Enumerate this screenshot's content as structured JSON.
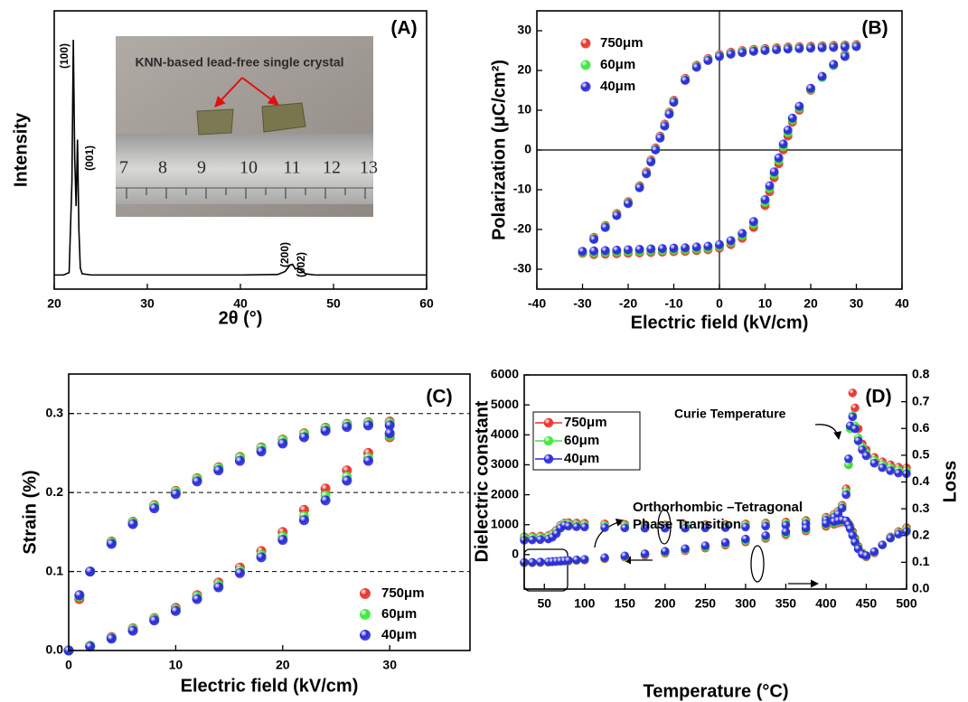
{
  "chart_data": [
    {
      "type": "line",
      "panel_label": "(A)",
      "xlabel": "2θ (°)",
      "ylabel": "Intensity",
      "xlim": [
        20,
        60
      ],
      "xticks": [
        20,
        30,
        40,
        50,
        60
      ],
      "x": [
        20,
        21,
        21.6,
        21.9,
        22.05,
        22.2,
        22.35,
        22.5,
        22.65,
        22.8,
        23,
        24,
        30,
        40,
        44,
        44.8,
        45.3,
        45.6,
        45.9,
        46.2,
        46.5,
        47,
        48,
        60
      ],
      "series": [
        {
          "color": "#000000",
          "values": [
            1,
            1,
            2,
            40,
            100,
            50,
            30,
            58,
            20,
            4,
            1.5,
            1,
            1,
            1,
            1.2,
            2.5,
            5,
            5.5,
            3.5,
            4,
            3,
            1.5,
            1,
            1
          ]
        }
      ],
      "annotations": [
        "(100)",
        "(001)",
        "(200)",
        "(002)"
      ],
      "inset_text": "KNN-based  lead-free single crystal",
      "ruler_labels": [
        7,
        8,
        9,
        10,
        11,
        12,
        13
      ]
    },
    {
      "type": "scatter",
      "panel_label": "(B)",
      "xlabel": "Electric field (kV/cm)",
      "ylabel": "Polarization (μC/cm²)",
      "xlim": [
        -40,
        40
      ],
      "xticks": [
        -40,
        -30,
        -20,
        -10,
        0,
        10,
        20,
        30,
        40
      ],
      "ylim": [
        -35,
        35
      ],
      "yticks": [
        -30,
        -20,
        -10,
        0,
        10,
        20,
        30
      ],
      "crosshair": true,
      "legend": "upper left",
      "x": [
        30,
        27.5,
        25,
        22.5,
        20,
        17.5,
        15,
        12.5,
        10,
        7.5,
        5,
        2.5,
        0,
        -2.5,
        -5,
        -7.5,
        -10,
        -11,
        -12,
        -13,
        -14,
        -15,
        -16,
        -17.5,
        -20,
        -22.5,
        -25,
        -27.5,
        -30,
        -27.5,
        -25,
        -22.5,
        -20,
        -17.5,
        -15,
        -12.5,
        -10,
        -7.5,
        -5,
        -2.5,
        0,
        2.5,
        5,
        7.5,
        10,
        11,
        12,
        13,
        14,
        15,
        16,
        17.5,
        20,
        22.5,
        25,
        27.5
      ],
      "series": [
        {
          "name": "750μm",
          "color": "#e8312a",
          "values": [
            26.5,
            26.4,
            26.3,
            26.2,
            26.1,
            26,
            25.9,
            25.7,
            25.5,
            25.3,
            25,
            24.6,
            24,
            23,
            21.3,
            18,
            12.5,
            9.5,
            6.5,
            3.5,
            0.5,
            -2.5,
            -5.5,
            -9,
            -13,
            -16,
            -19,
            -22,
            -26,
            -26.3,
            -26.2,
            -26.1,
            -26,
            -25.9,
            -25.8,
            -25.7,
            -25.6,
            -25.5,
            -25.3,
            -25.1,
            -24.7,
            -23.8,
            -22.2,
            -19.5,
            -14,
            -10.5,
            -7,
            -3.5,
            0,
            3.5,
            7,
            10,
            15,
            18.5,
            21.5,
            24
          ]
        },
        {
          "name": "60μm",
          "color": "#3be83b",
          "values": [
            26.2,
            26.1,
            26,
            25.9,
            25.8,
            25.7,
            25.6,
            25.4,
            25.2,
            25,
            24.7,
            24.3,
            23.7,
            22.7,
            21,
            17.7,
            12.2,
            9.2,
            6.2,
            3.2,
            0.2,
            -2.8,
            -5.8,
            -9.3,
            -13.3,
            -16.3,
            -19.3,
            -22.3,
            -25.8,
            -25.9,
            -25.8,
            -25.7,
            -25.6,
            -25.5,
            -25.4,
            -25.3,
            -25.2,
            -25.1,
            -24.9,
            -24.7,
            -24.3,
            -23.3,
            -21.6,
            -18.7,
            -13.2,
            -9.7,
            -6.2,
            -2.7,
            0.8,
            4.3,
            7.5,
            10.5,
            15.2,
            18.2,
            21.2,
            23.7
          ]
        },
        {
          "name": "40μm",
          "color": "#2a2ad8",
          "values": [
            26,
            25.9,
            25.8,
            25.7,
            25.6,
            25.5,
            25.4,
            25.2,
            25.0,
            24.8,
            24.5,
            24.1,
            23.5,
            22.5,
            20.8,
            17.5,
            12,
            9,
            6,
            3,
            0,
            -3,
            -6,
            -9.5,
            -13.5,
            -16.5,
            -19.5,
            -22.5,
            -25.5,
            -25.4,
            -25.3,
            -25.2,
            -25.1,
            -25,
            -24.9,
            -24.8,
            -24.7,
            -24.6,
            -24.4,
            -24.2,
            -23.8,
            -22.8,
            -21,
            -18,
            -12.5,
            -9,
            -5.5,
            -2,
            1.5,
            5,
            8,
            11,
            15.5,
            18.5,
            21.5,
            23.5
          ]
        }
      ]
    },
    {
      "type": "scatter",
      "panel_label": "(C)",
      "xlabel": "Electric field (kV/cm)",
      "ylabel": "Strain (%)",
      "xlim": [
        0,
        37.5
      ],
      "xticks": [
        0,
        10,
        20,
        30
      ],
      "ylim": [
        0,
        0.35
      ],
      "yticks": [
        {
          "value": 0,
          "label": "0.0"
        },
        0.1,
        0.2,
        0.3
      ],
      "grid": true,
      "legend": "lower right",
      "x": [
        30,
        28,
        26,
        24,
        22,
        20,
        18,
        16,
        14,
        12,
        10,
        8,
        6,
        4,
        2,
        1,
        0,
        2,
        4,
        6,
        8,
        10,
        12,
        14,
        16,
        18,
        20,
        22,
        24,
        26,
        28,
        30
      ],
      "series": [
        {
          "name": "750μm",
          "color": "#e8312a",
          "values": [
            0.29,
            0.289,
            0.287,
            0.282,
            0.275,
            0.267,
            0.257,
            0.245,
            0.232,
            0.218,
            0.202,
            0.184,
            0.163,
            0.138,
            0.1,
            0.065,
            0,
            0.006,
            0.017,
            0.028,
            0.041,
            0.054,
            0.07,
            0.086,
            0.105,
            0.126,
            0.15,
            0.178,
            0.205,
            0.228,
            0.25,
            0.27
          ]
        },
        {
          "name": "60μm",
          "color": "#3be83b",
          "values": [
            0.288,
            0.288,
            0.286,
            0.281,
            0.274,
            0.266,
            0.256,
            0.244,
            0.231,
            0.217,
            0.201,
            0.183,
            0.162,
            0.137,
            0.1,
            0.068,
            0,
            0.006,
            0.016,
            0.027,
            0.04,
            0.052,
            0.068,
            0.083,
            0.101,
            0.121,
            0.144,
            0.17,
            0.196,
            0.22,
            0.244,
            0.272
          ]
        },
        {
          "name": "40μm",
          "color": "#2a2ad8",
          "values": [
            0.285,
            0.285,
            0.283,
            0.278,
            0.27,
            0.262,
            0.252,
            0.24,
            0.228,
            0.214,
            0.198,
            0.18,
            0.16,
            0.135,
            0.1,
            0.07,
            0,
            0.005,
            0.015,
            0.025,
            0.038,
            0.05,
            0.065,
            0.08,
            0.098,
            0.118,
            0.14,
            0.165,
            0.19,
            0.215,
            0.24,
            0.275
          ]
        }
      ]
    },
    {
      "type": "scatter",
      "panel_label": "(D)",
      "xlabel": "Temperature (°C)",
      "ylabel": "Dielectric constant",
      "y2label": "Loss",
      "xlim": [
        25,
        500
      ],
      "xticks": [
        50,
        100,
        150,
        200,
        250,
        300,
        350,
        400,
        450,
        500
      ],
      "ylim": [
        -1150,
        6000
      ],
      "yticks": [
        0,
        1000,
        2000,
        3000,
        4000,
        5000,
        6000
      ],
      "y2lim": [
        0,
        0.8
      ],
      "y2ticks": [
        {
          "value": 0,
          "label": "0.0"
        },
        0.1,
        0.2,
        0.3,
        0.4,
        0.5,
        0.6,
        0.7,
        0.8
      ],
      "legend": "upper left",
      "legend_frame": true,
      "annotations": [
        "Curie Temperature",
        "Orthorhombic –Tetragonal",
        "Phase Transition"
      ],
      "x": [
        25,
        35,
        45,
        55,
        60,
        65,
        70,
        75,
        80,
        90,
        100,
        125,
        150,
        175,
        200,
        225,
        250,
        275,
        300,
        325,
        350,
        375,
        400,
        410,
        415,
        420,
        425,
        428,
        430,
        433,
        436,
        440,
        445,
        450,
        460,
        470,
        480,
        490,
        500
      ],
      "series": [
        {
          "name": "750μm",
          "color": "#e8312a",
          "values": [
            600,
            610,
            620,
            640,
            700,
            820,
            980,
            1060,
            1070,
            1060,
            1050,
            1030,
            1010,
            1000,
            990,
            990,
            1000,
            1010,
            1030,
            1060,
            1090,
            1140,
            1250,
            1350,
            1450,
            1650,
            2200,
            3000,
            4300,
            5400,
            4900,
            4200,
            3700,
            3500,
            3250,
            3100,
            3000,
            2920,
            2900
          ]
        },
        {
          "name": "60μm",
          "color": "#3be83b",
          "values": [
            560,
            570,
            580,
            600,
            650,
            770,
            940,
            1030,
            1020,
            1000,
            990,
            970,
            960,
            950,
            945,
            945,
            950,
            960,
            980,
            1010,
            1040,
            1090,
            1200,
            1300,
            1400,
            1600,
            2100,
            3000,
            4200,
            4650,
            4300,
            3900,
            3600,
            3400,
            3150,
            3000,
            2900,
            2820,
            2800
          ]
        },
        {
          "name": "40μm",
          "color": "#2a2ad8",
          "values": [
            480,
            490,
            500,
            520,
            580,
            700,
            880,
            980,
            950,
            930,
            920,
            900,
            890,
            880,
            880,
            880,
            890,
            900,
            920,
            950,
            980,
            1030,
            1150,
            1250,
            1350,
            1550,
            2000,
            3200,
            4300,
            4600,
            4200,
            3800,
            3500,
            3300,
            3050,
            2900,
            2800,
            2720,
            2700
          ]
        },
        {
          "name": "750μm",
          "color": "#e8312a",
          "axis": "y2",
          "values": [
            0.098,
            0.098,
            0.099,
            0.1,
            0.101,
            0.102,
            0.103,
            0.104,
            0.105,
            0.107,
            0.108,
            0.113,
            0.119,
            0.126,
            0.134,
            0.143,
            0.153,
            0.164,
            0.176,
            0.189,
            0.203,
            0.217,
            0.234,
            0.242,
            0.247,
            0.25,
            0.25,
            0.245,
            0.235,
            0.215,
            0.19,
            0.16,
            0.135,
            0.12,
            0.135,
            0.165,
            0.195,
            0.215,
            0.23
          ]
        },
        {
          "name": "60μm",
          "color": "#3be83b",
          "axis": "y2",
          "values": [
            0.099,
            0.099,
            0.1,
            0.101,
            0.102,
            0.103,
            0.104,
            0.105,
            0.106,
            0.108,
            0.11,
            0.115,
            0.121,
            0.129,
            0.137,
            0.147,
            0.157,
            0.169,
            0.181,
            0.194,
            0.208,
            0.222,
            0.24,
            0.247,
            0.252,
            0.254,
            0.253,
            0.243,
            0.23,
            0.208,
            0.183,
            0.155,
            0.132,
            0.122,
            0.138,
            0.165,
            0.192,
            0.21,
            0.222
          ]
        },
        {
          "name": "40μm",
          "color": "#2a2ad8",
          "axis": "y2",
          "values": [
            0.1,
            0.1,
            0.101,
            0.102,
            0.103,
            0.104,
            0.105,
            0.106,
            0.107,
            0.109,
            0.111,
            0.117,
            0.124,
            0.132,
            0.141,
            0.151,
            0.162,
            0.174,
            0.187,
            0.2,
            0.214,
            0.228,
            0.245,
            0.252,
            0.256,
            0.258,
            0.255,
            0.24,
            0.225,
            0.2,
            0.175,
            0.15,
            0.13,
            0.125,
            0.14,
            0.165,
            0.19,
            0.205,
            0.215
          ]
        }
      ]
    }
  ]
}
